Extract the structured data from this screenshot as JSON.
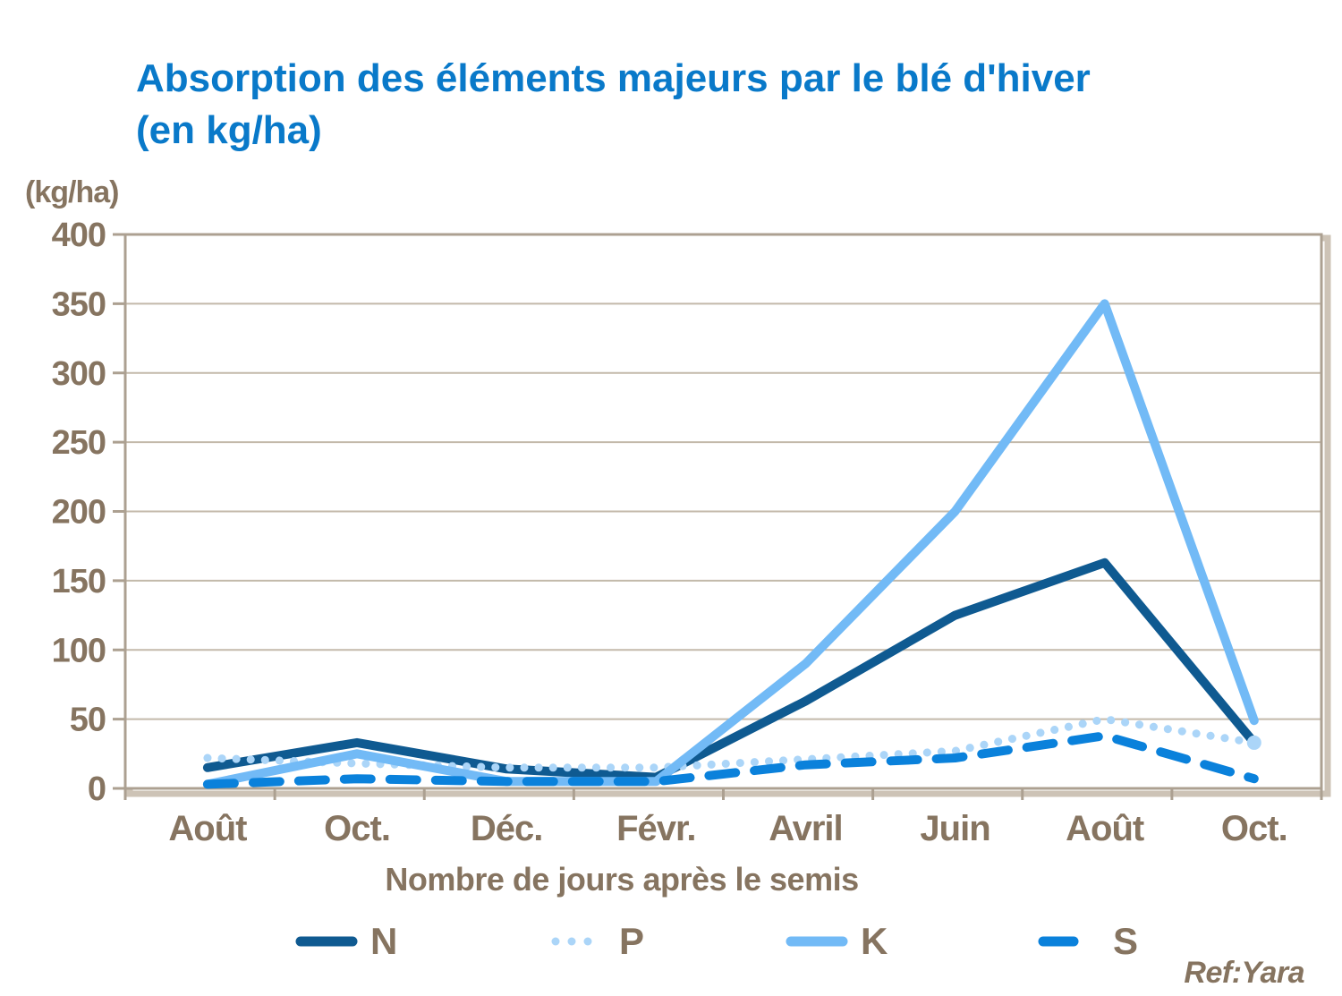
{
  "title": {
    "line1": "Absorption des éléments majeurs par le blé d'hiver",
    "line2": "(en kg/ha)"
  },
  "y_unit_label": "(kg/ha)",
  "x_axis_title": "Nombre de jours après le semis",
  "source_ref": "Ref:Yara",
  "colors": {
    "title_blue": "#0979C9",
    "axis_text": "#867460",
    "plot_border": "#ACA091",
    "plot_shadow": "#CDC3B6",
    "gridline": "#C3B9AA",
    "series_N": "#0F5A91",
    "series_P": "#ABD5F8",
    "series_K": "#72BAF6",
    "series_S": "#0A81DB"
  },
  "chart_data": {
    "type": "line",
    "title": "Absorption des éléments majeurs par le blé d'hiver (en kg/ha)",
    "xlabel": "Nombre de jours après le semis",
    "ylabel": "(kg/ha)",
    "categories": [
      "Août",
      "Oct.",
      "Déc.",
      "Févr.",
      "Avril",
      "Juin",
      "Août",
      "Oct."
    ],
    "series": [
      {
        "name": "N",
        "style": "solid",
        "color": "#0F5A91",
        "values": [
          15,
          33,
          14,
          8,
          63,
          125,
          163,
          33
        ]
      },
      {
        "name": "P",
        "style": "dotted",
        "color": "#ABD5F8",
        "values": [
          22,
          18,
          15,
          15,
          21,
          27,
          50,
          33
        ],
        "end_marker": true
      },
      {
        "name": "K",
        "style": "solid",
        "color": "#72BAF6",
        "values": [
          3,
          25,
          5,
          5,
          90,
          200,
          350,
          49
        ]
      },
      {
        "name": "S",
        "style": "dashed",
        "color": "#0A81DB",
        "values": [
          3,
          7,
          5,
          5,
          17,
          22,
          38,
          7
        ]
      }
    ],
    "ylim": [
      0,
      400
    ],
    "ytick_step": 50,
    "grid": true,
    "legend_position": "bottom"
  }
}
